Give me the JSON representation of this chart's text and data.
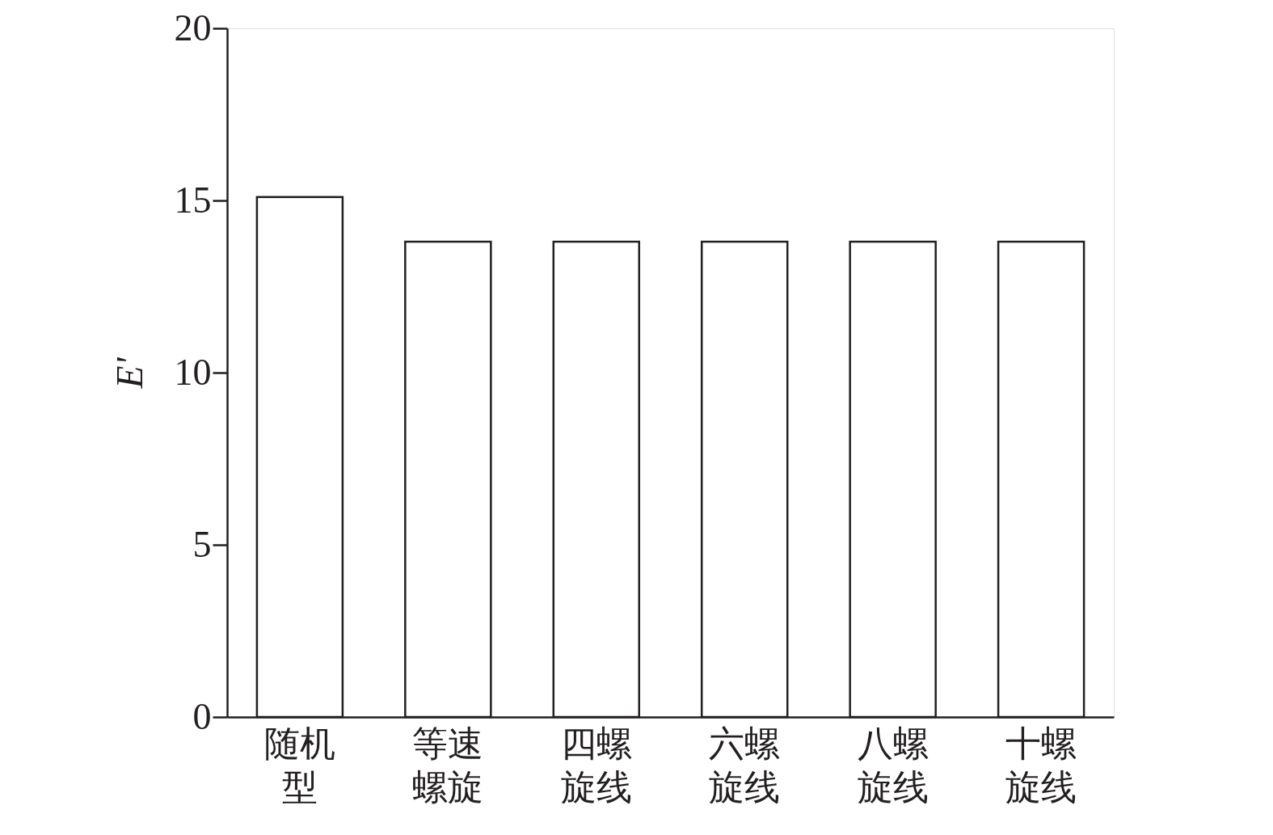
{
  "chart_data": {
    "type": "bar",
    "ylabel": "E'",
    "categories": [
      "随机型",
      "等速螺旋",
      "四螺旋线",
      "六螺旋线",
      "八螺旋线",
      "十螺旋线"
    ],
    "values": [
      15.1,
      13.8,
      13.8,
      13.8,
      13.8,
      13.8
    ],
    "color": "#ffffff",
    "ylim": [
      0,
      20
    ],
    "yticks": [
      0,
      5,
      10,
      15,
      20
    ],
    "grid": false
  }
}
